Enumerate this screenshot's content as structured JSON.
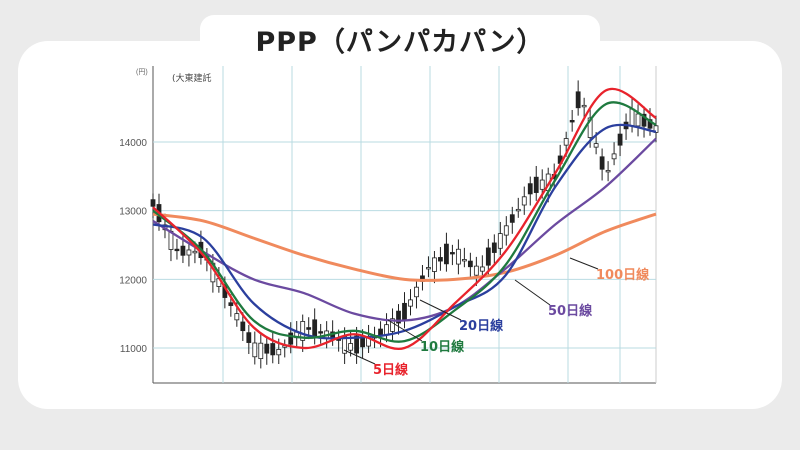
{
  "title": "PPP（パンパカパン）",
  "colors": {
    "background": "#ebebeb",
    "card": "#ffffff",
    "candle": "#222222",
    "grid": "#b9dbe2"
  },
  "chart_data": {
    "type": "line",
    "unit_label": "(円)",
    "corner_label": "(大東建託",
    "ylim": [
      10500,
      14950
    ],
    "y_ticks": [
      11000,
      12000,
      13000,
      14000
    ],
    "y_tick_labels": [
      "11000",
      "12000",
      "13000",
      "14000"
    ],
    "grid": true,
    "x": [
      0,
      10,
      20,
      30,
      40,
      50,
      60,
      70,
      80,
      90,
      100
    ],
    "series": [
      {
        "name": "5日線",
        "color": "#e8232c",
        "values": [
          13050,
          12350,
          11300,
          11000,
          11200,
          11000,
          11650,
          12400,
          13550,
          14750,
          14350
        ]
      },
      {
        "name": "10日線",
        "color": "#1f7a3f",
        "values": [
          13000,
          12400,
          11400,
          11150,
          11250,
          11100,
          11550,
          12200,
          13450,
          14550,
          14250
        ]
      },
      {
        "name": "20日線",
        "color": "#2b3f9e",
        "values": [
          12800,
          12600,
          11650,
          11200,
          11150,
          11250,
          11600,
          12050,
          13350,
          14200,
          14150
        ]
      },
      {
        "name": "50日線",
        "color": "#6b4aa0",
        "values": [
          12850,
          12400,
          12000,
          11800,
          11500,
          11400,
          11600,
          12150,
          12800,
          13350,
          14050
        ]
      },
      {
        "name": "100日線",
        "color": "#f08a5d",
        "values": [
          12950,
          12850,
          12600,
          12350,
          12150,
          12000,
          12000,
          12100,
          12350,
          12700,
          12950
        ]
      }
    ],
    "candles": {
      "x": [
        0,
        5,
        10,
        15,
        20,
        25,
        30,
        35,
        40,
        45,
        50,
        55,
        60,
        65,
        70,
        75,
        80,
        85,
        90,
        95,
        100
      ],
      "close": [
        13100,
        12400,
        12400,
        11700,
        11000,
        10950,
        11300,
        11200,
        11000,
        11200,
        11500,
        12200,
        12400,
        12100,
        12700,
        13300,
        13500,
        14700,
        13500,
        14400,
        14200
      ]
    },
    "labels": [
      {
        "text": "5日線",
        "series": "5日線"
      },
      {
        "text": "10日線",
        "series": "10日線"
      },
      {
        "text": "20日線",
        "series": "20日線"
      },
      {
        "text": "50日線",
        "series": "50日線"
      },
      {
        "text": "100日線",
        "series": "100日線"
      }
    ]
  }
}
